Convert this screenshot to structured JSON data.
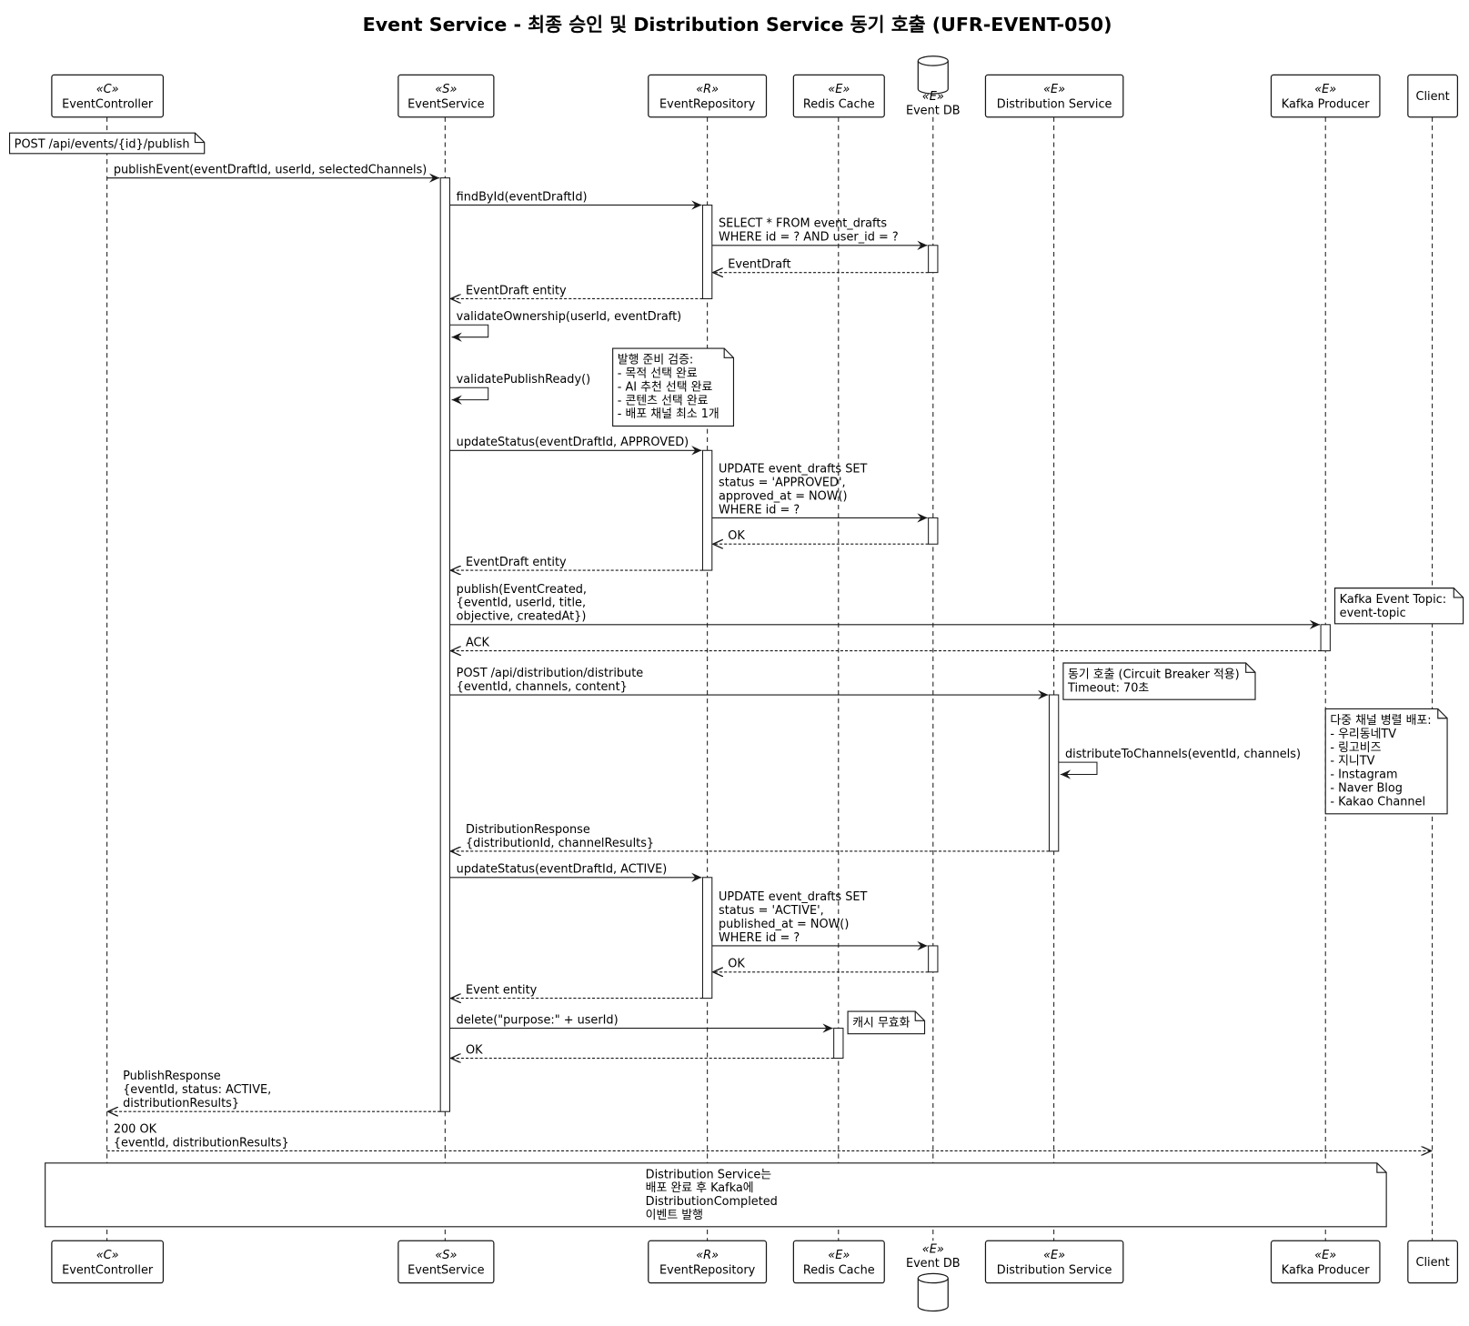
{
  "title": "Event Service - 최종 승인 및 Distribution Service 동기 호출 (UFR-EVENT-050)",
  "participants": [
    {
      "id": "EC",
      "stereotype": "«C»",
      "name": "EventController",
      "shape": "box"
    },
    {
      "id": "ES",
      "stereotype": "«S»",
      "name": "EventService",
      "shape": "box"
    },
    {
      "id": "ER",
      "stereotype": "«R»",
      "name": "EventRepository",
      "shape": "box"
    },
    {
      "id": "RC",
      "stereotype": "«E»",
      "name": "Redis Cache",
      "shape": "box"
    },
    {
      "id": "DB",
      "stereotype": "«E»",
      "name": "Event DB",
      "shape": "database"
    },
    {
      "id": "DS",
      "stereotype": "«E»",
      "name": "Distribution Service",
      "shape": "box"
    },
    {
      "id": "KP",
      "stereotype": "«E»",
      "name": "Kafka Producer",
      "shape": "box"
    },
    {
      "id": "CL",
      "stereotype": "",
      "name": "Client",
      "shape": "box"
    }
  ],
  "messages": [
    {
      "from": "EC",
      "to": "ES",
      "type": "sync",
      "lines": [
        "publishEvent(eventDraftId, userId, selectedChannels)"
      ]
    },
    {
      "from": "ES",
      "to": "ER",
      "type": "sync",
      "lines": [
        "findById(eventDraftId)"
      ]
    },
    {
      "from": "ER",
      "to": "DB",
      "type": "sync",
      "lines": [
        "SELECT * FROM event_drafts",
        "WHERE id = ? AND user_id = ?"
      ]
    },
    {
      "from": "DB",
      "to": "ER",
      "type": "return",
      "lines": [
        "EventDraft"
      ]
    },
    {
      "from": "ER",
      "to": "ES",
      "type": "return",
      "lines": [
        "EventDraft entity"
      ]
    },
    {
      "from": "ES",
      "to": "ES",
      "type": "self",
      "lines": [
        "validateOwnership(userId, eventDraft)"
      ]
    },
    {
      "from": "ES",
      "to": "ES",
      "type": "self",
      "lines": [
        "validatePublishReady()"
      ]
    },
    {
      "from": "ES",
      "to": "ER",
      "type": "sync",
      "lines": [
        "updateStatus(eventDraftId, APPROVED)"
      ]
    },
    {
      "from": "ER",
      "to": "DB",
      "type": "sync",
      "lines": [
        "UPDATE event_drafts SET",
        "status = 'APPROVED',",
        "approved_at = NOW()",
        "WHERE id = ?"
      ]
    },
    {
      "from": "DB",
      "to": "ER",
      "type": "return",
      "lines": [
        "OK"
      ]
    },
    {
      "from": "ER",
      "to": "ES",
      "type": "return",
      "lines": [
        "EventDraft entity"
      ]
    },
    {
      "from": "ES",
      "to": "KP",
      "type": "sync",
      "lines": [
        "publish(EventCreated,",
        "{eventId, userId, title,",
        "objective, createdAt})"
      ]
    },
    {
      "from": "KP",
      "to": "ES",
      "type": "return",
      "lines": [
        "ACK"
      ]
    },
    {
      "from": "ES",
      "to": "DS",
      "type": "sync",
      "lines": [
        "POST /api/distribution/distribute",
        "{eventId, channels, content}"
      ]
    },
    {
      "from": "DS",
      "to": "DS",
      "type": "self",
      "lines": [
        "distributeToChannels(eventId, channels)"
      ]
    },
    {
      "from": "DS",
      "to": "ES",
      "type": "return",
      "lines": [
        "DistributionResponse",
        "{distributionId, channelResults}"
      ]
    },
    {
      "from": "ES",
      "to": "ER",
      "type": "sync",
      "lines": [
        "updateStatus(eventDraftId, ACTIVE)"
      ]
    },
    {
      "from": "ER",
      "to": "DB",
      "type": "sync",
      "lines": [
        "UPDATE event_drafts SET",
        "status = 'ACTIVE',",
        "published_at = NOW()",
        "WHERE id = ?"
      ]
    },
    {
      "from": "DB",
      "to": "ER",
      "type": "return",
      "lines": [
        "OK"
      ]
    },
    {
      "from": "ER",
      "to": "ES",
      "type": "return",
      "lines": [
        "Event entity"
      ]
    },
    {
      "from": "ES",
      "to": "RC",
      "type": "sync",
      "lines": [
        "delete(\"purpose:\" + userId)"
      ]
    },
    {
      "from": "RC",
      "to": "ES",
      "type": "return",
      "lines": [
        "OK"
      ]
    },
    {
      "from": "ES",
      "to": "EC",
      "type": "return",
      "lines": [
        "PublishResponse",
        "{eventId, status: ACTIVE,",
        "distributionResults}"
      ]
    },
    {
      "from": "EC",
      "to": "CL",
      "type": "return",
      "lines": [
        "200 OK",
        "{eventId, distributionResults}"
      ]
    }
  ],
  "notes": [
    {
      "lines": [
        "POST /api/events/{id}/publish"
      ]
    },
    {
      "lines": [
        "발행 준비 검증:",
        "- 목적 선택 완료",
        "- AI 추천 선택 완료",
        "- 콘텐츠 선택 완료",
        "- 배포 채널 최소 1개"
      ]
    },
    {
      "lines": [
        "Kafka Event Topic:",
        "event-topic"
      ]
    },
    {
      "lines": [
        "동기 호출 (Circuit Breaker 적용)",
        "Timeout: 70초"
      ]
    },
    {
      "lines": [
        "다중 채널 병렬 배포:",
        "- 우리동네TV",
        "- 링고비즈",
        "- 지니TV",
        "- Instagram",
        "- Naver Blog",
        "- Kakao Channel"
      ]
    },
    {
      "lines": [
        "캐시 무효화"
      ]
    },
    {
      "lines": [
        "Distribution Service는",
        "배포 완료 후 Kafka에",
        "DistributionCompleted",
        "이벤트 발행"
      ]
    }
  ],
  "colors": {
    "line": "#181818",
    "background": "#ffffff",
    "box": "#ffffff"
  }
}
